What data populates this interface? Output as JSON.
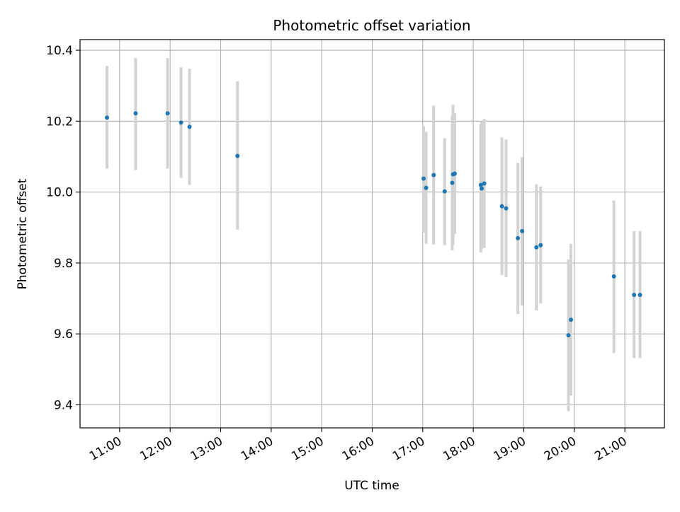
{
  "chart_data": {
    "type": "scatter",
    "title": "Photometric offset variation",
    "xlabel": "UTC time",
    "ylabel": "Photometric offset",
    "x_ticks": [
      "11:00",
      "12:00",
      "13:00",
      "14:00",
      "15:00",
      "16:00",
      "17:00",
      "18:00",
      "19:00",
      "20:00",
      "21:00"
    ],
    "y_ticks": [
      "9.4",
      "9.6",
      "9.8",
      "10.0",
      "10.2",
      "10.4"
    ],
    "xlim": [
      "10:13",
      "21:47"
    ],
    "ylim": [
      9.335,
      10.43
    ],
    "grid": true,
    "colors": {
      "marker": "#1f77b4",
      "errorbar": "#d3d3d3",
      "grid": "#b0b0b0"
    },
    "points": [
      {
        "x": "10:45",
        "y": 10.21,
        "yerr_low": 10.066,
        "yerr_high": 10.356
      },
      {
        "x": "11:19",
        "y": 10.222,
        "yerr_low": 10.062,
        "yerr_high": 10.378
      },
      {
        "x": "11:57",
        "y": 10.222,
        "yerr_low": 10.066,
        "yerr_high": 10.378
      },
      {
        "x": "12:13",
        "y": 10.196,
        "yerr_low": 10.04,
        "yerr_high": 10.352
      },
      {
        "x": "12:23",
        "y": 10.184,
        "yerr_low": 10.02,
        "yerr_high": 10.348
      },
      {
        "x": "13:20",
        "y": 10.102,
        "yerr_low": 9.894,
        "yerr_high": 10.312
      },
      {
        "x": "17:01",
        "y": 10.038,
        "yerr_low": 9.886,
        "yerr_high": 10.186
      },
      {
        "x": "17:04",
        "y": 10.012,
        "yerr_low": 9.854,
        "yerr_high": 10.17
      },
      {
        "x": "17:13",
        "y": 10.048,
        "yerr_low": 9.852,
        "yerr_high": 10.244
      },
      {
        "x": "17:26",
        "y": 10.002,
        "yerr_low": 9.85,
        "yerr_high": 10.152
      },
      {
        "x": "17:35",
        "y": 10.026,
        "yerr_low": 9.836,
        "yerr_high": 10.216
      },
      {
        "x": "17:36",
        "y": 10.05,
        "yerr_low": 9.852,
        "yerr_high": 10.246
      },
      {
        "x": "17:38",
        "y": 10.052,
        "yerr_low": 9.882,
        "yerr_high": 10.222
      },
      {
        "x": "18:09",
        "y": 10.02,
        "yerr_low": 9.83,
        "yerr_high": 10.192
      },
      {
        "x": "18:10",
        "y": 10.01,
        "yerr_low": 9.84,
        "yerr_high": 10.2
      },
      {
        "x": "18:13",
        "y": 10.024,
        "yerr_low": 9.842,
        "yerr_high": 10.206
      },
      {
        "x": "18:34",
        "y": 9.96,
        "yerr_low": 9.766,
        "yerr_high": 10.154
      },
      {
        "x": "18:39",
        "y": 9.954,
        "yerr_low": 9.76,
        "yerr_high": 10.148
      },
      {
        "x": "18:53",
        "y": 9.87,
        "yerr_low": 9.656,
        "yerr_high": 10.082
      },
      {
        "x": "18:58",
        "y": 9.89,
        "yerr_low": 9.68,
        "yerr_high": 10.098
      },
      {
        "x": "19:15",
        "y": 9.844,
        "yerr_low": 9.666,
        "yerr_high": 10.022
      },
      {
        "x": "19:20",
        "y": 9.85,
        "yerr_low": 9.686,
        "yerr_high": 10.016
      },
      {
        "x": "19:53",
        "y": 9.596,
        "yerr_low": 9.382,
        "yerr_high": 9.81
      },
      {
        "x": "19:56",
        "y": 9.64,
        "yerr_low": 9.426,
        "yerr_high": 9.854
      },
      {
        "x": "20:47",
        "y": 9.762,
        "yerr_low": 9.546,
        "yerr_high": 9.976
      },
      {
        "x": "21:11",
        "y": 9.71,
        "yerr_low": 9.532,
        "yerr_high": 9.89
      },
      {
        "x": "21:18",
        "y": 9.71,
        "yerr_low": 9.532,
        "yerr_high": 9.89
      }
    ]
  }
}
